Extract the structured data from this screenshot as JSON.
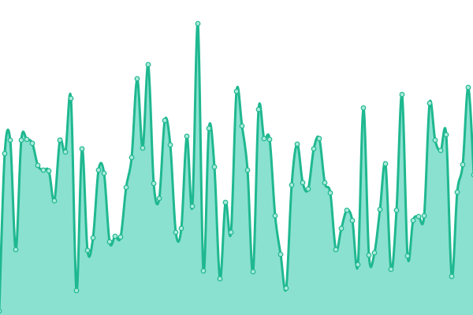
{
  "chart_data": {
    "type": "area",
    "color": "#1fb890",
    "fill": "#8ae1cf",
    "marker_fill": "#a8ead9",
    "ylim": [
      0,
      400
    ],
    "values": [
      5,
      205,
      222,
      83,
      222,
      223,
      218,
      190,
      184,
      183,
      145,
      222,
      207,
      275,
      31,
      211,
      82,
      98,
      184,
      180,
      93,
      100,
      99,
      162,
      200,
      300,
      212,
      318,
      167,
      148,
      247,
      216,
      105,
      110,
      227,
      138,
      370,
      56,
      237,
      188,
      46,
      143,
      105,
      284,
      240,
      184,
      55,
      261,
      224,
      223,
      126,
      77,
      34,
      165,
      217,
      168,
      160,
      211,
      224,
      168,
      155,
      83,
      110,
      133,
      120,
      64,
      263,
      76,
      79,
      134,
      192,
      58,
      133,
      280,
      75,
      120,
      125,
      126,
      269,
      222,
      209,
      229,
      49,
      156,
      191,
      289,
      178
    ]
  }
}
